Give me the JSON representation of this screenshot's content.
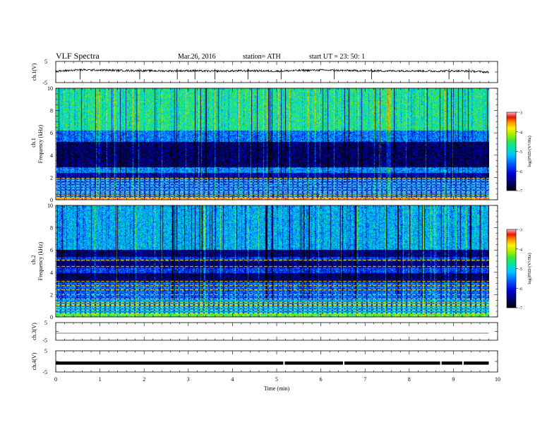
{
  "header": {
    "title": "VLF  Spectra",
    "date": "Mar.26, 2016",
    "station": "station= ATH",
    "start": "start  UT  =    23: 50: 1"
  },
  "chart_data": [
    {
      "type": "line",
      "panel": "ch1-waveform",
      "ylabel": "ch.1(V)",
      "ylim": [
        -5,
        5
      ],
      "y_ticks": [
        "5",
        "-5"
      ],
      "x": [
        0.0,
        0.5,
        1.0,
        1.5,
        2.0,
        2.5,
        3.0,
        3.5,
        4.0,
        4.5,
        5.0,
        5.5,
        6.0,
        6.5,
        7.0,
        7.5,
        8.0,
        8.5,
        9.0,
        9.5,
        9.8
      ],
      "values": [
        0.3,
        1.0,
        0.9,
        0.7,
        0.6,
        0.5,
        0.6,
        0.4,
        0.5,
        0.6,
        0.4,
        0.7,
        0.9,
        0.7,
        0.6,
        0.5,
        0.6,
        0.4,
        0.5,
        0.3,
        -0.1
      ],
      "spikes_x": [
        0.55,
        1.9,
        2.75,
        3.15,
        3.6,
        4.35,
        5.1,
        6.3,
        7.15,
        8.9,
        9.35
      ]
    },
    {
      "type": "heatmap",
      "panel": "ch1-spectrogram",
      "ylabel": "Frequency  (kHz)",
      "channel_label": "ch.1",
      "ylim": [
        0,
        10
      ],
      "y_ticks": [
        "0",
        "2",
        "4",
        "6",
        "8",
        "10"
      ],
      "colorbar": {
        "label": "log(PSD/(V²/Hz)",
        "range": [
          -7,
          -3
        ],
        "ticks": [
          "-3",
          "-4",
          "-5",
          "-6",
          "-7"
        ]
      },
      "bands": [
        {
          "f": [
            0.0,
            0.25
          ],
          "logpsd": -3.4
        },
        {
          "f": [
            0.25,
            1.9
          ],
          "logpsd": -5.6
        },
        {
          "f": [
            1.9,
            2.4
          ],
          "logpsd": -6.3
        },
        {
          "f": [
            2.4,
            2.9
          ],
          "logpsd": -5.4
        },
        {
          "f": [
            2.9,
            5.2
          ],
          "logpsd": -6.6
        },
        {
          "f": [
            5.2,
            6.2
          ],
          "logpsd": -5.5
        },
        {
          "f": [
            6.2,
            10.0
          ],
          "logpsd": -4.7
        }
      ],
      "lines_khz": [
        0.2,
        0.4,
        0.55,
        0.7,
        0.95,
        1.2,
        1.45,
        1.7,
        1.9
      ]
    },
    {
      "type": "heatmap",
      "panel": "ch2-spectrogram",
      "ylabel": "Frequency  (kHz)",
      "channel_label": "ch.2",
      "ylim": [
        0,
        10
      ],
      "y_ticks": [
        "0",
        "2",
        "4",
        "6",
        "8",
        "10"
      ],
      "colorbar": {
        "label": "log(PSD/(V²/Hz)",
        "range": [
          -7,
          -3
        ],
        "ticks": [
          "-3",
          "-4",
          "-5",
          "-6",
          "-7"
        ]
      },
      "bands": [
        {
          "f": [
            0.0,
            0.3
          ],
          "logpsd": -4.4
        },
        {
          "f": [
            0.3,
            1.6
          ],
          "logpsd": -5.3
        },
        {
          "f": [
            1.6,
            3.1
          ],
          "logpsd": -5.6
        },
        {
          "f": [
            3.1,
            3.9
          ],
          "logpsd": -6.6
        },
        {
          "f": [
            3.9,
            4.4
          ],
          "logpsd": -5.8
        },
        {
          "f": [
            4.4,
            5.0
          ],
          "logpsd": -6.5
        },
        {
          "f": [
            5.0,
            5.4
          ],
          "logpsd": -5.8
        },
        {
          "f": [
            5.4,
            6.0
          ],
          "logpsd": -6.5
        },
        {
          "f": [
            6.0,
            10.0
          ],
          "logpsd": -5.2
        }
      ],
      "lines_khz": [
        0.3,
        0.55,
        0.8,
        1.05,
        1.3,
        1.6,
        2.0,
        2.4,
        2.8,
        3.2,
        4.5,
        5.1
      ]
    },
    {
      "type": "line",
      "panel": "ch3-waveform",
      "ylabel": "ch.3(V)",
      "ylim": [
        -5,
        5
      ],
      "y_ticks": [
        "5",
        "-5"
      ],
      "x": [
        0.0,
        9.8
      ],
      "values": [
        -1.0,
        -1.0
      ]
    },
    {
      "type": "line",
      "panel": "ch4-waveform",
      "ylabel": "ch.4(V)",
      "ylim": [
        -5,
        5
      ],
      "y_ticks": [
        "5",
        "-5"
      ],
      "x": [
        0.0,
        9.8
      ],
      "values": [
        -0.8,
        -0.8
      ],
      "xlabel": "Time  (min)",
      "xlim": [
        0,
        10
      ],
      "x_ticks": [
        "0",
        "1",
        "2",
        "3",
        "4",
        "5",
        "6",
        "7",
        "8",
        "9",
        "10"
      ]
    }
  ]
}
